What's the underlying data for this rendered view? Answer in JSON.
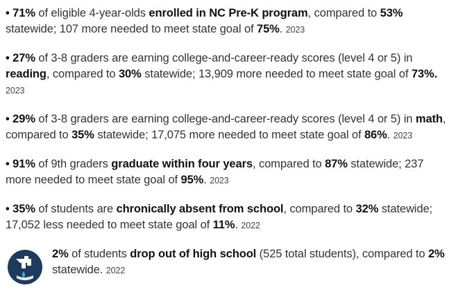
{
  "items": [
    [
      {
        "text": "• 71%",
        "bold": true
      },
      {
        "text": " of eligible 4-year-olds "
      },
      {
        "text": "enrolled in NC Pre-K program",
        "bold": true
      },
      {
        "text": ", compared to "
      },
      {
        "text": "53%",
        "bold": true
      },
      {
        "text": " statewide; 107 more needed to meet state goal of "
      },
      {
        "text": "75%",
        "bold": true
      },
      {
        "text": ". "
      },
      {
        "text": "2023",
        "small": true
      }
    ],
    [
      {
        "text": "• 27%",
        "bold": true
      },
      {
        "text": " of 3-8 graders are earning college-and-career-ready scores (level 4 or 5) in "
      },
      {
        "text": "reading",
        "bold": true
      },
      {
        "text": ", compared to "
      },
      {
        "text": "30%",
        "bold": true
      },
      {
        "text": " statewide; 13,909 more needed to meet state goal of "
      },
      {
        "text": "73%.",
        "bold": true
      },
      {
        "text": " "
      },
      {
        "text": "2023",
        "small": true
      }
    ],
    [
      {
        "text": "• 29%",
        "bold": true
      },
      {
        "text": " of 3-8 graders are earning college-and-career-ready scores (level 4 or 5) in "
      },
      {
        "text": "math",
        "bold": true
      },
      {
        "text": ", compared to "
      },
      {
        "text": "35%",
        "bold": true
      },
      {
        "text": " statewide; 17,075 more needed to meet state goal of "
      },
      {
        "text": "86%",
        "bold": true
      },
      {
        "text": ". "
      },
      {
        "text": "2023",
        "small": true
      }
    ],
    [
      {
        "text": "• 91%",
        "bold": true
      },
      {
        "text": " of 9th graders "
      },
      {
        "text": "graduate within four years",
        "bold": true
      },
      {
        "text": ", compared to "
      },
      {
        "text": "87%",
        "bold": true
      },
      {
        "text": " statewide; 237 more needed to meet state goal of "
      },
      {
        "text": "95%",
        "bold": true
      },
      {
        "text": ". "
      },
      {
        "text": "2023",
        "small": true
      }
    ],
    [
      {
        "text": "• 35%",
        "bold": true
      },
      {
        "text": " of students are "
      },
      {
        "text": "chronically absent from school",
        "bold": true
      },
      {
        "text": ", compared to "
      },
      {
        "text": "32%",
        "bold": true
      },
      {
        "text": " statewide; 17,052 less needed to meet state goal of "
      },
      {
        "text": "11%",
        "bold": true
      },
      {
        "text": ". "
      },
      {
        "text": "2022",
        "small": true
      }
    ],
    [
      {
        "text": "2%",
        "bold": true
      },
      {
        "text": " of students "
      },
      {
        "text": "drop out of high school",
        "bold": true
      },
      {
        "text": " (525 total students), compared to "
      },
      {
        "text": "2%",
        "bold": true
      },
      {
        "text": " statewide. "
      },
      {
        "text": "2022",
        "small": true
      }
    ]
  ]
}
